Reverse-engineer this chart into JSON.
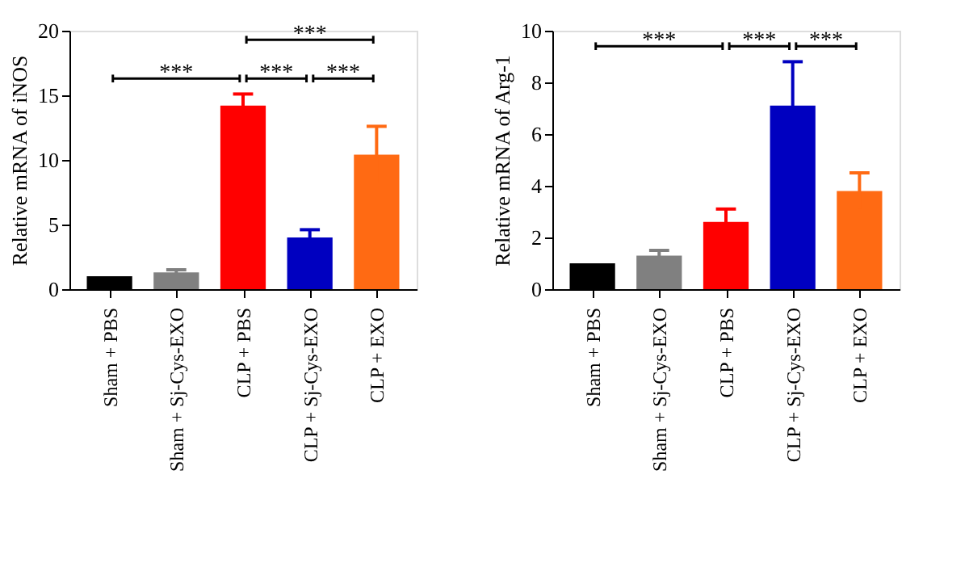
{
  "chart_data": [
    {
      "type": "bar",
      "ylabel": "Relative mRNA of iNOS",
      "categories": [
        "Sham + PBS",
        "Sham + Sj-Cys-EXO",
        "CLP + PBS",
        "CLP + Sj-Cys-EXO",
        "CLP + EXO"
      ],
      "values": [
        1.0,
        1.3,
        14.2,
        4.0,
        10.4
      ],
      "errors": [
        null,
        0.2,
        0.9,
        0.6,
        2.2
      ],
      "colors": [
        "#000000",
        "#808080",
        "#ff0000",
        "#0000c0",
        "#ff6a13"
      ],
      "ylim": [
        0,
        20
      ],
      "yticks": [
        0,
        5,
        10,
        15,
        20
      ],
      "grid": false,
      "legend": false,
      "annotations": [
        "***",
        "***",
        "***",
        "***"
      ]
    },
    {
      "type": "bar",
      "ylabel": "Relative mRNA of Arg-1",
      "categories": [
        "Sham + PBS",
        "Sham + Sj-Cys-EXO",
        "CLP + PBS",
        "CLP + Sj-Cys-EXO",
        "CLP + EXO"
      ],
      "values": [
        1.0,
        1.3,
        2.6,
        7.1,
        3.8
      ],
      "errors": [
        null,
        0.2,
        0.5,
        1.7,
        0.7
      ],
      "colors": [
        "#000000",
        "#808080",
        "#ff0000",
        "#0000c0",
        "#ff6a13"
      ],
      "ylim": [
        0,
        10
      ],
      "yticks": [
        0,
        2,
        4,
        6,
        8,
        10
      ],
      "grid": false,
      "legend": false,
      "annotations": [
        "***",
        "***",
        "***"
      ]
    }
  ]
}
